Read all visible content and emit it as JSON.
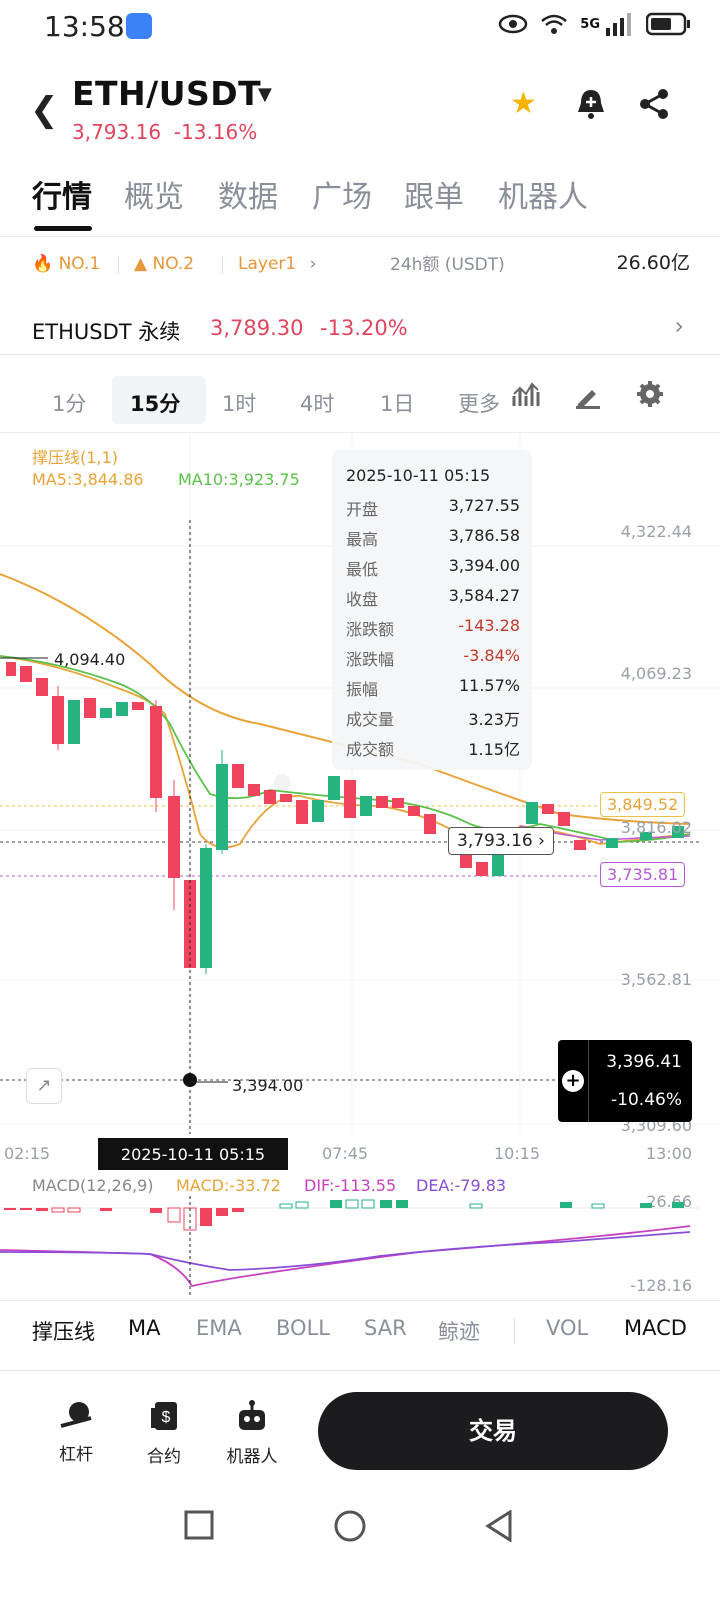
{
  "status_bar": {
    "time": "13:58",
    "network": "5G"
  },
  "header": {
    "pair": "ETH/USDT",
    "price": "3,793.16",
    "change": "-13.16%"
  },
  "tabs": [
    "行情",
    "概览",
    "数据",
    "广场",
    "跟单",
    "机器人"
  ],
  "ranks": [
    {
      "label": "NO.1",
      "icon": "fire-icon"
    },
    {
      "label": "NO.2",
      "icon": "trend-icon"
    },
    {
      "label": "Layer1"
    }
  ],
  "vol24": {
    "label": "24h额 (USDT)",
    "value": "26.60亿"
  },
  "perp": {
    "name": "ETHUSDT 永续",
    "price": "3,789.30",
    "change": "-13.20%"
  },
  "timeframes": [
    "1分",
    "15分",
    "1时",
    "4时",
    "1日",
    "更多"
  ],
  "indicators": {
    "support_label": "撑压线(1,1)",
    "ma5": "MA5:3,844.86",
    "ma10": "MA10:3,923.75"
  },
  "tooltip": {
    "date": "2025-10-11 05:15",
    "rows": [
      {
        "k": "开盘",
        "v": "3,727.55"
      },
      {
        "k": "最高",
        "v": "3,786.58"
      },
      {
        "k": "最低",
        "v": "3,394.00"
      },
      {
        "k": "收盘",
        "v": "3,584.27"
      },
      {
        "k": "涨跌额",
        "v": "-143.28"
      },
      {
        "k": "涨跌幅",
        "v": "-3.84%"
      },
      {
        "k": "振幅",
        "v": "11.57%"
      },
      {
        "k": "成交量",
        "v": "3.23万"
      },
      {
        "k": "成交额",
        "v": "1.15亿"
      }
    ]
  },
  "price_axis": [
    "4,322.44",
    "4,069.23",
    "3,816.02",
    "3,562.81",
    "3,309.60"
  ],
  "chart_labels": {
    "high": "4,094.40",
    "low": "3,394.00",
    "support": "3,849.52",
    "resist": "3,735.81",
    "current": "3,793.16",
    "hover_price": "3,396.41",
    "hover_pct": "-10.46%"
  },
  "time_axis": [
    "02:15",
    "07:45",
    "10:15",
    "13:00"
  ],
  "selected_time": "2025-10-11 05:15",
  "macd": {
    "label": "MACD(12,26,9)",
    "macd": "MACD:-33.72",
    "dif": "DIF:-113.55",
    "dea": "DEA:-79.83",
    "top": "26.66",
    "bottom": "-128.16"
  },
  "bottom_indicators": [
    "撑压线",
    "MA",
    "EMA",
    "BOLL",
    "SAR",
    "鲸迹",
    "VOL",
    "MACD"
  ],
  "bottom_nav": [
    {
      "label": "杠杆",
      "icon": "leverage-icon"
    },
    {
      "label": "合约",
      "icon": "contract-icon"
    },
    {
      "label": "机器人",
      "icon": "robot-icon"
    }
  ],
  "trade_button": "交易",
  "colors": {
    "up": "#26b37f",
    "down": "#f0445e",
    "ma5": "#e8a33a",
    "ma10": "#5ac24a",
    "accent": "#e0455e"
  }
}
